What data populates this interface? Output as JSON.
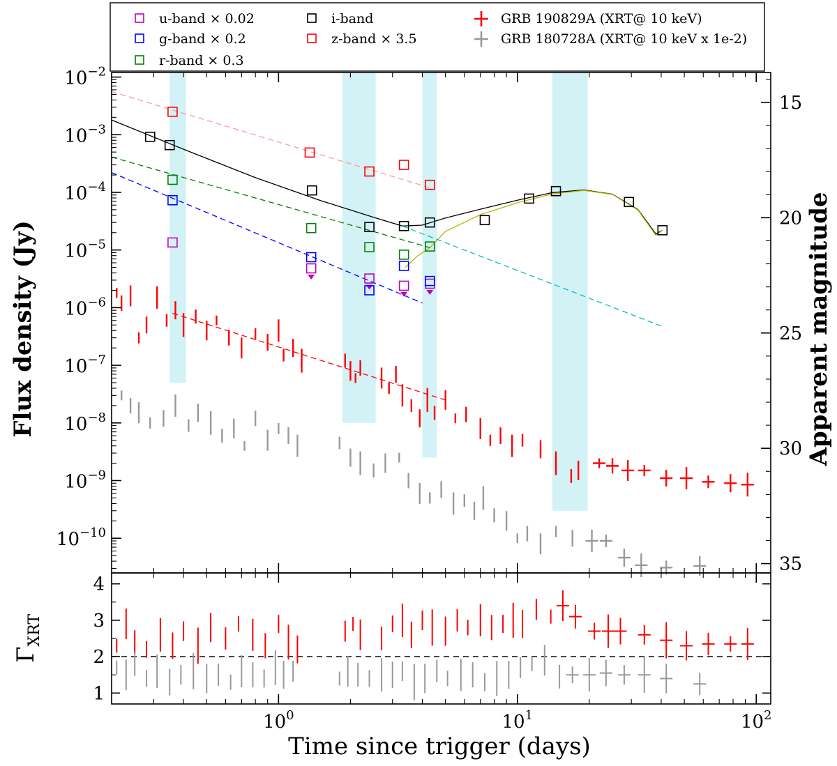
{
  "chart_data": [
    {
      "type": "scatter",
      "panel": "top",
      "ylabel": "Flux density (Jy)",
      "ylabel_right": "Apparent magnitude",
      "xscale": "log",
      "yscale": "log",
      "xlim": [
        0.2,
        115
      ],
      "ylim": [
        2.5e-11,
        0.012
      ],
      "x_ticks": [
        {
          "value": 1,
          "label": "10^0"
        },
        {
          "value": 10,
          "label": "10^1"
        },
        {
          "value": 100,
          "label": "10^2"
        }
      ],
      "y_ticks": [
        {
          "value": 0.01,
          "label": "10^-2"
        },
        {
          "value": 0.001,
          "label": "10^-3"
        },
        {
          "value": 0.0001,
          "label": "10^-4"
        },
        {
          "value": 1e-05,
          "label": "10^-5"
        },
        {
          "value": 1e-06,
          "label": "10^-6"
        },
        {
          "value": 1e-07,
          "label": "10^-7"
        },
        {
          "value": 1e-08,
          "label": "10^-8"
        },
        {
          "value": 1e-09,
          "label": "10^-9"
        },
        {
          "value": 1e-10,
          "label": "10^-10"
        }
      ],
      "mag_ticks": [
        15,
        20,
        25,
        30,
        35
      ],
      "shaded_bands": [
        {
          "x": [
            0.35,
            0.41
          ],
          "y": [
            5e-08,
            0.012
          ]
        },
        {
          "x": [
            1.85,
            2.55
          ],
          "y": [
            1e-08,
            0.012
          ]
        },
        {
          "x": [
            4.0,
            4.6
          ],
          "y": [
            2.5e-09,
            0.012
          ]
        },
        {
          "x": [
            14.0,
            19.7
          ],
          "y": [
            3e-10,
            0.012
          ]
        }
      ],
      "legend": [
        {
          "label": "u-band × 0.02",
          "color": "#bf00bf",
          "marker": "square"
        },
        {
          "label": "g-band × 0.2",
          "color": "#0000ff",
          "marker": "square"
        },
        {
          "label": "r-band × 0.3",
          "color": "#008000",
          "marker": "square"
        },
        {
          "label": "i-band",
          "color": "#000000",
          "marker": "square"
        },
        {
          "label": "z-band × 3.5",
          "color": "#ff0000",
          "marker": "square"
        },
        {
          "label": "GRB 190829A (XRT@ 10 keV)",
          "color": "#ff0000",
          "marker": "cross"
        },
        {
          "label": "GRB 180728A (XRT@ 10 keV x 1e-2)",
          "color": "#999999",
          "marker": "cross"
        }
      ],
      "series": [
        {
          "name": "u-band × 0.02",
          "color": "#bf00bf",
          "x": [
            0.36,
            1.37,
            2.4,
            3.35,
            4.3
          ],
          "y": [
            1.35e-05,
            4.8e-06,
            3.2e-06,
            2.4e-06,
            2.6e-06
          ],
          "upper_limit": [
            false,
            true,
            true,
            true,
            true
          ]
        },
        {
          "name": "g-band × 0.2",
          "color": "#0000ff",
          "x": [
            0.36,
            1.37,
            2.4,
            3.35,
            4.3
          ],
          "y": [
            7.3e-05,
            7.5e-06,
            2e-06,
            5.3e-06,
            2.9e-06
          ]
        },
        {
          "name": "r-band × 0.3",
          "color": "#008000",
          "x": [
            0.36,
            1.37,
            2.4,
            3.35,
            4.3
          ],
          "y": [
            0.000165,
            2.4e-05,
            1.12e-05,
            8.3e-06,
            1.15e-05
          ]
        },
        {
          "name": "i-band",
          "color": "#000000",
          "x": [
            0.29,
            0.35,
            1.38,
            2.4,
            3.35,
            4.3,
            7.3,
            11.2,
            14.5,
            29.3,
            40.5
          ],
          "y": [
            0.00092,
            0.00066,
            0.000108,
            2.5e-05,
            2.6e-05,
            3e-05,
            3.3e-05,
            7.8e-05,
            0.000105,
            6.8e-05,
            2.2e-05
          ]
        },
        {
          "name": "z-band × 3.5",
          "color": "#ff0000",
          "x": [
            0.36,
            1.35,
            2.4,
            3.35,
            4.3
          ],
          "y": [
            0.0025,
            0.00049,
            0.00023,
            0.0003,
            0.000135
          ]
        }
      ],
      "xrt_190829A": {
        "name": "GRB 190829A (XRT@ 10 keV)",
        "color": "#ff0000",
        "x": [
          0.21,
          0.22,
          0.24,
          0.26,
          0.28,
          0.31,
          0.34,
          0.37,
          0.4,
          0.45,
          0.5,
          0.55,
          0.62,
          0.7,
          0.8,
          0.9,
          1.0,
          1.05,
          1.15,
          1.25,
          1.9,
          2.0,
          2.1,
          2.2,
          2.7,
          2.9,
          3.1,
          3.3,
          3.6,
          3.9,
          4.2,
          4.5,
          5.0,
          5.5,
          6.1,
          7.0,
          7.7,
          8.5,
          9.5,
          10.5,
          12.5,
          14.5,
          16.8,
          18.0,
          22.0,
          25.0,
          29.0,
          34.0,
          42.0,
          51.0,
          63.0,
          78.0,
          92.0
        ],
        "y": [
          1.8e-06,
          1.2e-06,
          1.6e-06,
          3e-07,
          5e-07,
          1.5e-06,
          6e-07,
          9e-07,
          5e-07,
          7e-07,
          4e-07,
          6e-07,
          3e-07,
          2e-07,
          3.5e-07,
          2.5e-07,
          4e-07,
          1.5e-07,
          2e-07,
          1.2e-07,
          1.2e-07,
          8e-08,
          6e-08,
          9e-08,
          6e-08,
          4e-08,
          7e-08,
          3e-08,
          2e-08,
          1.2e-08,
          2.5e-08,
          1.5e-08,
          2.5e-08,
          1.2e-08,
          1.4e-08,
          8e-09,
          5e-09,
          6e-09,
          4e-09,
          5e-09,
          3.5e-09,
          2e-09,
          1.2e-09,
          1.5e-09,
          2e-09,
          1.8e-09,
          1.5e-09,
          1.5e-09,
          1.1e-09,
          1.1e-09,
          9.5e-10,
          9e-10,
          8.5e-10
        ]
      },
      "xrt_180728A": {
        "name": "GRB 180728A (XRT@ 10 keV x 1e-2)",
        "color": "#999999",
        "x": [
          0.22,
          0.24,
          0.26,
          0.29,
          0.33,
          0.37,
          0.42,
          0.46,
          0.52,
          0.58,
          0.65,
          0.72,
          0.8,
          0.9,
          1.0,
          1.1,
          1.2,
          1.8,
          2.0,
          2.2,
          2.5,
          2.8,
          3.2,
          3.5,
          3.9,
          4.3,
          4.8,
          5.4,
          6.0,
          6.6,
          7.2,
          8.0,
          9.0,
          10.0,
          11.0,
          12.5,
          14.5,
          17.0,
          20.5,
          23.5,
          28.0,
          33.0,
          42.0,
          58.0
        ],
        "y": [
          3e-08,
          2e-08,
          1.5e-08,
          1e-08,
          1.2e-08,
          2e-08,
          9e-09,
          1.5e-08,
          1e-08,
          6e-09,
          8e-09,
          4e-09,
          1.2e-08,
          5e-09,
          8e-09,
          6e-09,
          4e-09,
          4.5e-09,
          2.5e-09,
          2e-09,
          1.5e-09,
          2e-09,
          2.5e-09,
          1e-09,
          6e-10,
          5e-10,
          7e-10,
          4e-10,
          4.5e-10,
          3e-10,
          5e-10,
          2.5e-10,
          2e-10,
          1e-10,
          1.2e-10,
          8e-11,
          1.3e-10,
          1e-10,
          9e-11,
          9e-11,
          4.6e-11,
          3.4e-11,
          3.1e-11,
          3.3e-11
        ]
      },
      "model_lines": [
        {
          "name": "i-band model",
          "color": "#000000",
          "style": "solid",
          "x": [
            0.2,
            0.4,
            0.8,
            1.5,
            2.5,
            3.3,
            4.0,
            5.0,
            7.0,
            10.0,
            14.0,
            19.0,
            25.0,
            32.0,
            38.0,
            40.5
          ],
          "y": [
            0.0018,
            0.00056,
            0.00018,
            7.2e-05,
            3.7e-05,
            2.6e-05,
            2.7e-05,
            3.6e-05,
            5.1e-05,
            7.3e-05,
            9.9e-05,
            0.00011,
            9.3e-05,
            5e-05,
            1.9e-05,
            2.2e-05
          ]
        },
        {
          "name": "kilonova component",
          "color": "#b8b800",
          "style": "solid",
          "x": [
            3.4,
            3.8,
            4.3,
            5.0,
            7.0,
            10.0,
            14.0,
            19.0,
            25.0,
            32.0,
            38.0,
            40.5
          ],
          "y": [
            5e-06,
            7.8e-06,
            1.1e-05,
            2.1e-05,
            4.1e-05,
            6.6e-05,
            9.4e-05,
            0.000108,
            9.2e-05,
            4.9e-05,
            1.8e-05,
            2.2e-05
          ]
        },
        {
          "name": "afterglow decay (extension)",
          "color": "#00c0c0",
          "style": "dashed",
          "x": [
            3.3,
            40.0
          ],
          "y": [
            2.6e-05,
            4.8e-07
          ]
        },
        {
          "name": "z-band fit",
          "color": "#ff9999",
          "style": "dashed",
          "x": [
            0.2,
            4.3
          ],
          "y": [
            0.0056,
            0.00012
          ]
        },
        {
          "name": "r-band fit",
          "color": "#008000",
          "style": "dashed",
          "x": [
            0.2,
            4.3
          ],
          "y": [
            0.00041,
            1.1e-05
          ]
        },
        {
          "name": "g-band fit",
          "color": "#0000ff",
          "style": "dashed",
          "x": [
            0.2,
            4.0
          ],
          "y": [
            0.00022,
            1.2e-06
          ]
        },
        {
          "name": "XRT fit",
          "color": "#ff0000",
          "style": "dashed",
          "x": [
            0.36,
            5.0
          ],
          "y": [
            8e-07,
            2.5e-08
          ]
        }
      ]
    },
    {
      "type": "scatter",
      "panel": "bottom",
      "xlabel": "Time since trigger (days)",
      "ylabel": "Γ_XRT",
      "xscale": "log",
      "xlim": [
        0.2,
        115
      ],
      "ylim": [
        0.7,
        4.3
      ],
      "y_ticks": [
        1,
        2,
        3,
        4
      ],
      "reference_line": {
        "y": 2.0,
        "style": "dashed",
        "color": "#000000"
      },
      "series": [
        {
          "name": "GRB 190829A",
          "color": "#ff0000",
          "x": [
            0.21,
            0.23,
            0.25,
            0.28,
            0.32,
            0.36,
            0.4,
            0.46,
            0.52,
            0.6,
            0.68,
            0.78,
            0.88,
            1.0,
            1.1,
            1.2,
            1.9,
            2.05,
            2.2,
            2.7,
            3.0,
            3.3,
            3.6,
            4.0,
            4.4,
            5.0,
            5.6,
            6.2,
            7.0,
            7.8,
            8.7,
            9.6,
            10.5,
            12.0,
            13.8,
            15.5,
            17.5,
            21.0,
            24.0,
            27.0,
            34.0,
            42.0,
            51.0,
            63.0,
            78.0,
            92.0
          ],
          "y": [
            2.3,
            2.9,
            2.4,
            2.2,
            2.6,
            2.3,
            2.7,
            2.3,
            2.8,
            2.5,
            2.9,
            2.6,
            2.3,
            2.9,
            2.4,
            2.2,
            2.7,
            2.9,
            2.6,
            2.5,
            2.9,
            3.0,
            2.6,
            3.0,
            2.8,
            2.7,
            3.0,
            2.8,
            3.0,
            2.8,
            2.9,
            3.0,
            2.9,
            3.3,
            3.1,
            3.4,
            3.1,
            2.7,
            2.7,
            2.7,
            2.6,
            2.45,
            2.3,
            2.35,
            2.35,
            2.35
          ]
        },
        {
          "name": "GRB 180728A",
          "color": "#999999",
          "x": [
            0.21,
            0.23,
            0.25,
            0.28,
            0.31,
            0.35,
            0.39,
            0.44,
            0.5,
            0.56,
            0.63,
            0.7,
            0.78,
            0.87,
            0.97,
            1.05,
            1.15,
            1.8,
            1.95,
            2.15,
            2.4,
            2.7,
            3.0,
            3.3,
            3.7,
            4.1,
            4.6,
            5.1,
            5.8,
            6.5,
            7.3,
            8.2,
            9.2,
            10.3,
            11.5,
            13.0,
            15.0,
            17.0,
            20.0,
            23.5,
            28.0,
            34.0,
            42.0,
            58.0
          ],
          "y": [
            1.7,
            1.5,
            1.8,
            1.4,
            1.6,
            1.3,
            1.5,
            1.6,
            1.4,
            1.5,
            1.3,
            1.6,
            1.5,
            1.4,
            1.7,
            1.5,
            1.6,
            1.4,
            1.6,
            1.5,
            1.4,
            1.5,
            1.5,
            1.6,
            1.3,
            1.4,
            1.6,
            1.4,
            1.5,
            1.5,
            1.3,
            1.4,
            1.5,
            1.7,
            1.8,
            1.9,
            1.45,
            1.5,
            1.5,
            1.55,
            1.5,
            1.5,
            1.4,
            1.25
          ]
        }
      ]
    }
  ]
}
